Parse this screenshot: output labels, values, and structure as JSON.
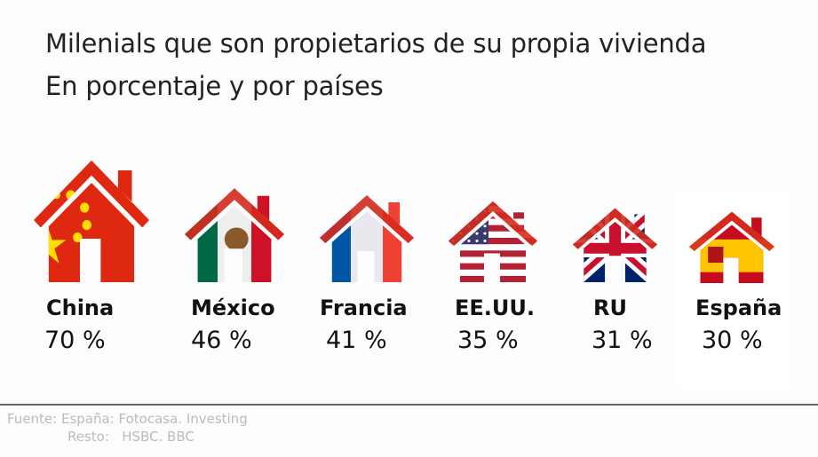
{
  "title": "Milenials que son propietarios de su propia vivienda",
  "subtitle": "En porcentaje y por países",
  "chart_data": {
    "type": "bar",
    "title": "Milenials que son propietarios de su propia vivienda",
    "subtitle": "En porcentaje y por países",
    "categories": [
      "China",
      "México",
      "Francia",
      "EE.UU.",
      "RU",
      "España"
    ],
    "values": [
      70,
      46,
      41,
      35,
      31,
      30
    ],
    "value_labels": [
      "70 %",
      "46 %",
      "41 %",
      "35 %",
      "31 %",
      "30 %"
    ],
    "unit": "%",
    "flags": [
      "china",
      "mexico",
      "france",
      "usa",
      "uk",
      "spain"
    ]
  },
  "source": {
    "line1": "Fuente: España: Fotocasa. Investing",
    "line2": "Resto:   HSBC. BBC"
  },
  "colors": {
    "roof_red": "#d52b1e",
    "text": "#111111",
    "source": "#bbbbbb"
  }
}
